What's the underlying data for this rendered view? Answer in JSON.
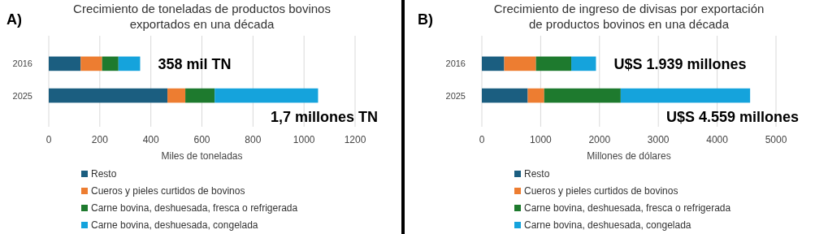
{
  "chart_data": [
    {
      "type": "bar",
      "orientation": "horizontal",
      "stacked": true,
      "title": "Crecimiento de toneladas de productos bovinos\nexportados en una década",
      "xlabel": "Miles de toneladas",
      "categories": [
        "2016",
        "2025"
      ],
      "series": [
        {
          "name": "Resto",
          "color": "#1b5e80",
          "values": [
            125,
            465
          ]
        },
        {
          "name": "Cueros y pieles curtidos de bovinos",
          "color": "#ed7d31",
          "values": [
            84,
            70
          ]
        },
        {
          "name": "Carne bovina, deshuesada, fresca o refrigerada",
          "color": "#1e7a2e",
          "values": [
            64,
            115
          ]
        },
        {
          "name": "Carne bovina, deshuesada, congelada",
          "color": "#15a3dc",
          "values": [
            85,
            405
          ]
        }
      ],
      "xlim": [
        0,
        1200
      ],
      "xticks": [
        0,
        200,
        400,
        600,
        800,
        1000,
        1200
      ],
      "grid": "x",
      "legend": "bottom",
      "annotations": [
        "A)",
        "358 mil TN",
        "1,7 millones TN"
      ]
    },
    {
      "type": "bar",
      "orientation": "horizontal",
      "stacked": true,
      "title": "Crecimiento de ingreso de divisas por exportación\nde productos bovinos en una década",
      "xlabel": "Millones de dólares",
      "categories": [
        "2016",
        "2025"
      ],
      "series": [
        {
          "name": "Resto",
          "color": "#1b5e80",
          "values": [
            380,
            780
          ]
        },
        {
          "name": "Cueros y pieles curtidos de bovinos",
          "color": "#ed7d31",
          "values": [
            540,
            280
          ]
        },
        {
          "name": "Carne bovina, deshuesada, fresca o refrigerada",
          "color": "#1e7a2e",
          "values": [
            600,
            1300
          ]
        },
        {
          "name": "Carne bovina, deshuesada, congelada",
          "color": "#15a3dc",
          "values": [
            420,
            2200
          ]
        }
      ],
      "xlim": [
        0,
        5000
      ],
      "xticks": [
        0,
        1000,
        2000,
        3000,
        4000,
        5000
      ],
      "grid": "x",
      "legend": "bottom",
      "annotations": [
        "B)",
        "U$S 1.939 millones",
        "U$S 4.559 millones"
      ]
    }
  ]
}
